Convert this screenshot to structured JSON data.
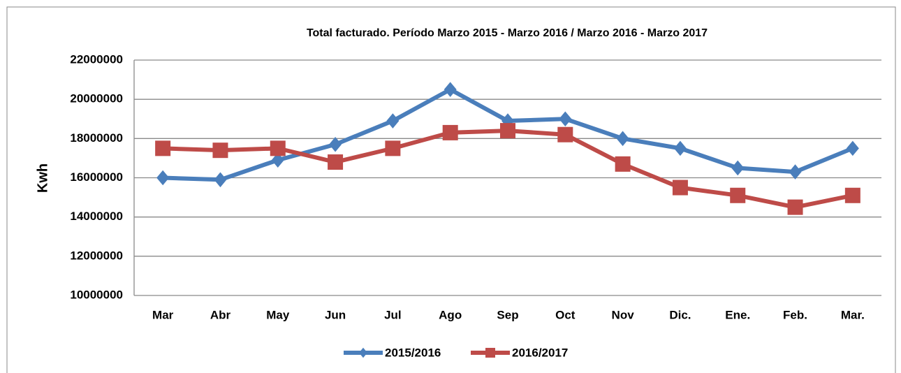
{
  "chart_data": {
    "type": "line",
    "title": "Total facturado. Período Marzo 2015 - Marzo 2016 / Marzo 2016 - Marzo 2017",
    "y_label": "Kwh",
    "categories": [
      "Mar",
      "Abr",
      "May",
      "Jun",
      "Jul",
      "Ago",
      "Sep",
      "Oct",
      "Nov",
      "Dic.",
      "Ene.",
      "Feb.",
      "Mar."
    ],
    "series": [
      {
        "name": "2015/2016",
        "color": "#4a7ebb",
        "marker": "diamond",
        "values": [
          16000000,
          15900000,
          16900000,
          17700000,
          18900000,
          20500000,
          18900000,
          19000000,
          18000000,
          17500000,
          16500000,
          16300000,
          17500000
        ]
      },
      {
        "name": "2016/2017",
        "color": "#be4b48",
        "marker": "square",
        "values": [
          17500000,
          17400000,
          17500000,
          16800000,
          17500000,
          18300000,
          18400000,
          18200000,
          16700000,
          15500000,
          15100000,
          14500000,
          15100000
        ]
      }
    ],
    "ylim": [
      10000000,
      22000000
    ],
    "yticks": [
      10000000,
      12000000,
      14000000,
      16000000,
      18000000,
      20000000,
      22000000
    ],
    "grid": true,
    "legend": "bottom"
  }
}
